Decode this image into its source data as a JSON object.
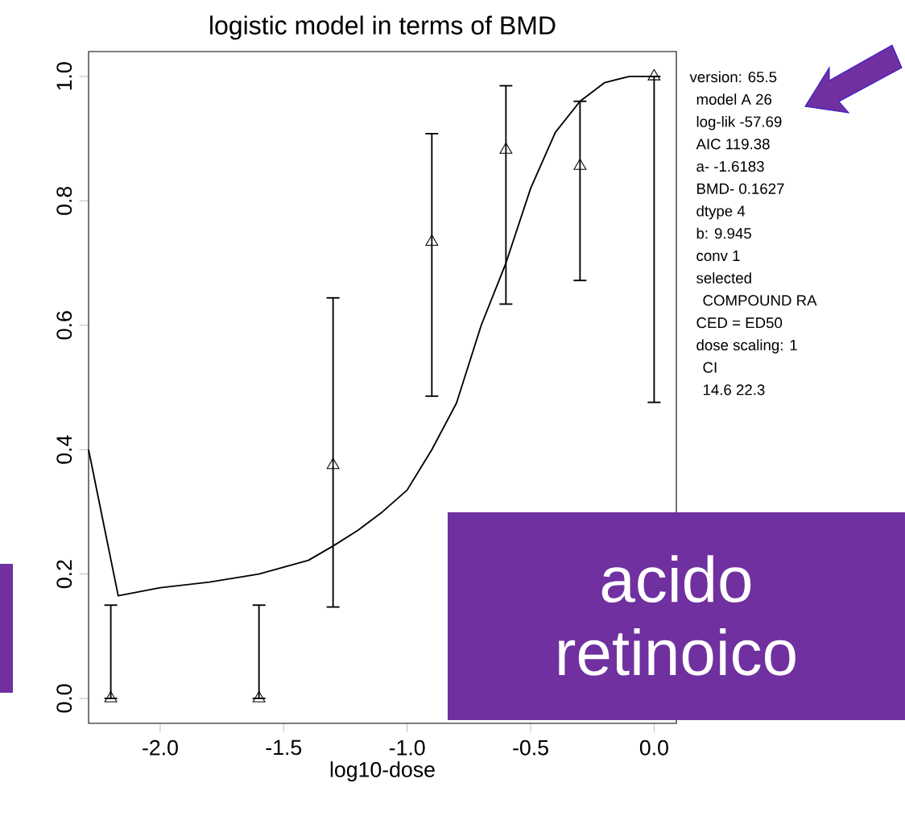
{
  "chart_data": {
    "type": "scatter",
    "title": "logistic model in terms of BMD",
    "xlabel": "log10-dose",
    "xlim": [
      -2.29,
      0.09
    ],
    "ylim": [
      -0.04,
      1.04
    ],
    "xticks": [
      {
        "value": -2,
        "label": "-2.0"
      },
      {
        "value": -1.5,
        "label": "-1.5"
      },
      {
        "value": -1,
        "label": "-1.0"
      },
      {
        "value": -0.5,
        "label": "-0.5"
      },
      {
        "value": 0,
        "label": "0.0"
      }
    ],
    "yticks": [
      {
        "value": 0,
        "label": "0.0"
      },
      {
        "value": 0.2,
        "label": "0.2"
      },
      {
        "value": 0.4,
        "label": "0.4"
      },
      {
        "value": 0.6,
        "label": "0.6"
      },
      {
        "value": 0.8,
        "label": "0.8"
      },
      {
        "value": 1,
        "label": "1.0"
      }
    ],
    "series": [
      {
        "type": "scatter",
        "color": "#000000",
        "marker": "triangle",
        "x": [
          -2.2,
          -1.6,
          -1.3,
          -0.9,
          -0.6,
          -0.3,
          0.0
        ],
        "values": [
          0.0,
          0.0,
          0.375,
          0.734,
          0.882,
          0.856,
          1.0
        ],
        "errors": [
          [
            0.0,
            0.15
          ],
          [
            0.0,
            0.15
          ],
          [
            0.147,
            0.644
          ],
          [
            0.486,
            0.908
          ],
          [
            0.634,
            0.985
          ],
          [
            0.672,
            0.96
          ],
          [
            0.476,
            1.0
          ]
        ]
      },
      {
        "type": "line",
        "color": "#000000",
        "marker": "none",
        "line_style": "solid",
        "x": [
          -2.29,
          -2.17,
          -2.0,
          -1.8,
          -1.6,
          -1.4,
          -1.3,
          -1.2,
          -1.1,
          -1.0,
          -0.9,
          -0.8,
          -0.7,
          -0.6,
          -0.5,
          -0.4,
          -0.3,
          -0.2,
          -0.1,
          0.0
        ],
        "values": [
          0.4,
          0.165,
          0.178,
          0.187,
          0.2,
          0.222,
          0.245,
          0.27,
          0.3,
          0.335,
          0.4,
          0.475,
          0.6,
          0.7,
          0.82,
          0.91,
          0.96,
          0.99,
          1.0,
          1.0
        ]
      }
    ],
    "annotations": [
      "version: 65.5",
      "model   A 26",
      "log-lik   -57.69",
      "AIC   119.38",
      "a-   -1.6183",
      "BMD-   0.1627",
      "dtype   4",
      "b:  9.945",
      "conv   1",
      "selected",
      "COMPOUND RA",
      "CED = ED50",
      "dose scaling: 1",
      "CI",
      "14.6  22.3",
      "acido retinoico"
    ]
  }
}
